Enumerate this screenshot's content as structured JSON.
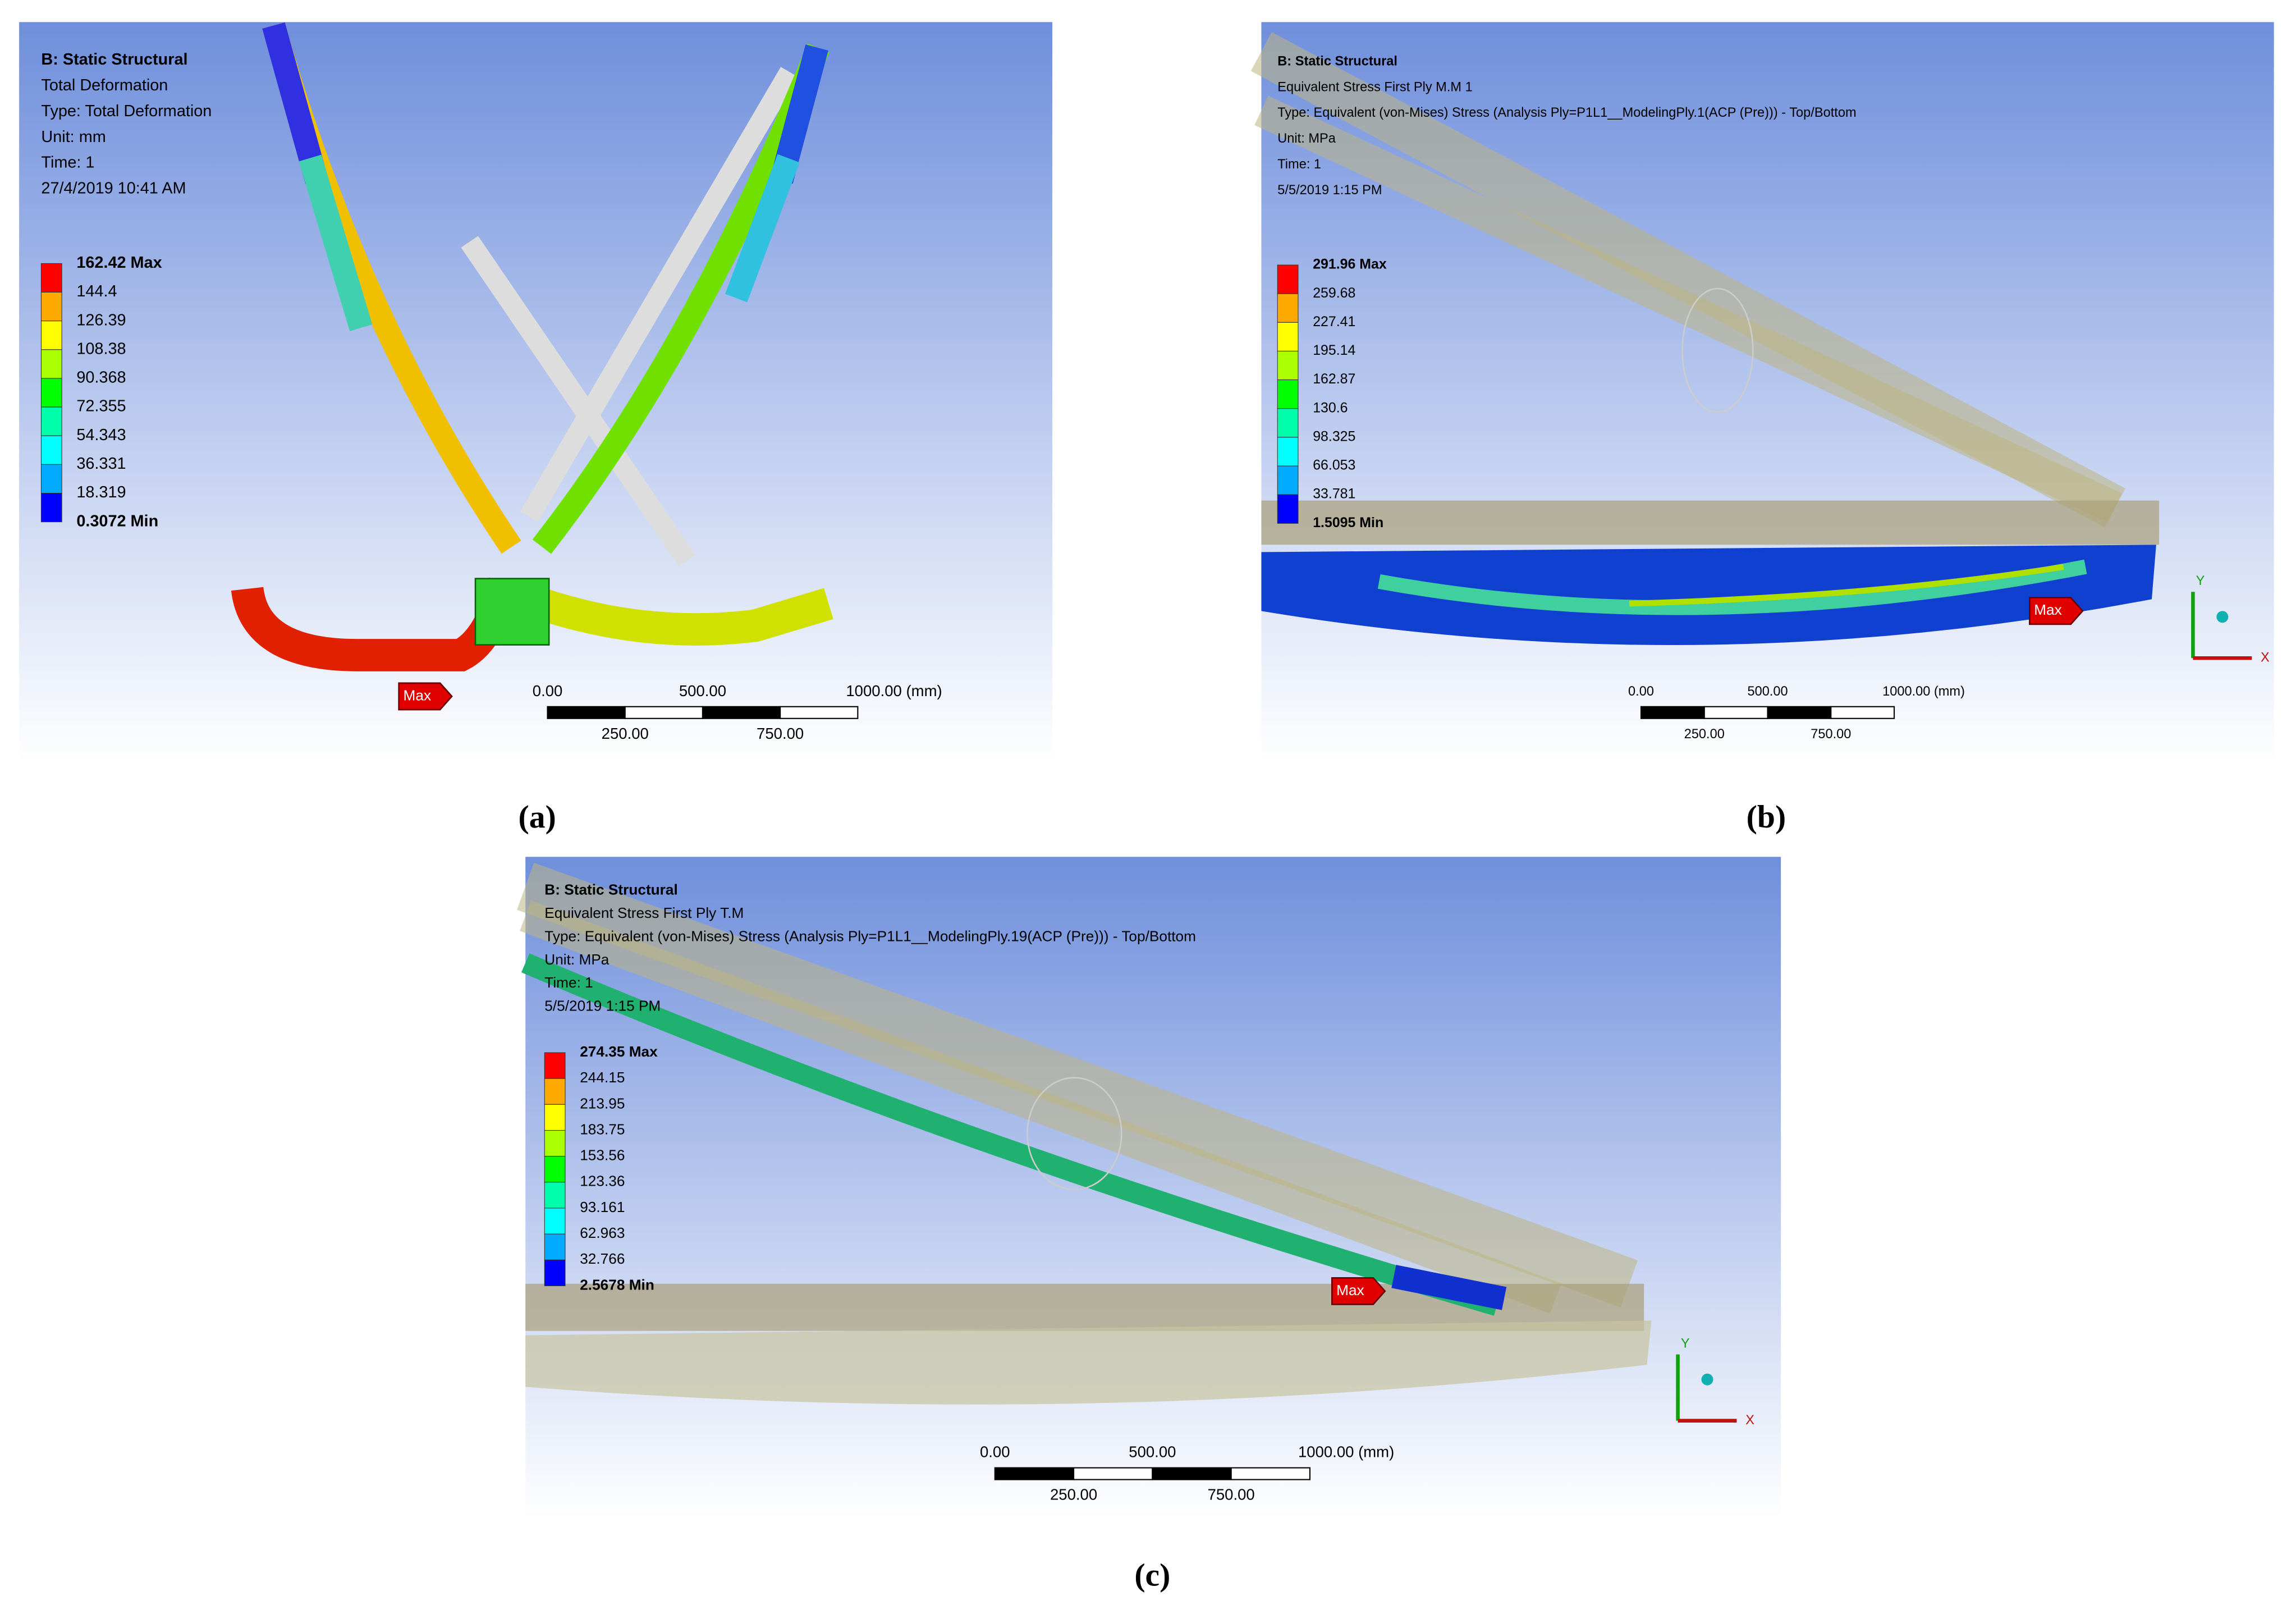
{
  "panels": [
    {
      "caption": "(a)",
      "header": [
        "B: Static Structural",
        "Total Deformation",
        "Type: Total Deformation",
        "Unit: mm",
        "Time: 1",
        "27/4/2019 10:41 AM"
      ],
      "legend": [
        "162.42 Max",
        "144.4",
        "126.39",
        "108.38",
        "90.368",
        "72.355",
        "54.343",
        "36.331",
        "18.319",
        "0.3072 Min"
      ],
      "scale_top": [
        "0.00",
        "500.00",
        "1000.00 (mm)"
      ],
      "scale_bottom": [
        "250.00",
        "750.00"
      ],
      "max_tag": "Max"
    },
    {
      "caption": "(b)",
      "header": [
        "B: Static Structural",
        "Equivalent Stress First Ply M.M 1",
        "Type: Equivalent (von-Mises) Stress (Analysis Ply=P1L1__ModelingPly.1(ACP (Pre))) - Top/Bottom",
        "Unit: MPa",
        "Time: 1",
        "5/5/2019 1:15 PM"
      ],
      "legend": [
        "291.96 Max",
        "259.68",
        "227.41",
        "195.14",
        "162.87",
        "130.6",
        "98.325",
        "66.053",
        "33.781",
        "1.5095 Min"
      ],
      "scale_top": [
        "0.00",
        "500.00",
        "1000.00 (mm)"
      ],
      "scale_bottom": [
        "250.00",
        "750.00"
      ],
      "max_tag": "Max",
      "axes": [
        "Y",
        "X"
      ]
    },
    {
      "caption": "(c)",
      "header": [
        "B: Static Structural",
        "Equivalent Stress First Ply T.M",
        "Type: Equivalent (von-Mises) Stress (Analysis Ply=P1L1__ModelingPly.19(ACP (Pre))) - Top/Bottom",
        "Unit: MPa",
        "Time: 1",
        "5/5/2019 1:15 PM"
      ],
      "legend": [
        "274.35 Max",
        "244.15",
        "213.95",
        "183.75",
        "153.56",
        "123.36",
        "93.161",
        "62.963",
        "32.766",
        "2.5678 Min"
      ],
      "scale_top": [
        "0.00",
        "500.00",
        "1000.00 (mm)"
      ],
      "scale_bottom": [
        "250.00",
        "750.00"
      ],
      "max_tag": "Max",
      "axes": [
        "Y",
        "X"
      ]
    }
  ]
}
